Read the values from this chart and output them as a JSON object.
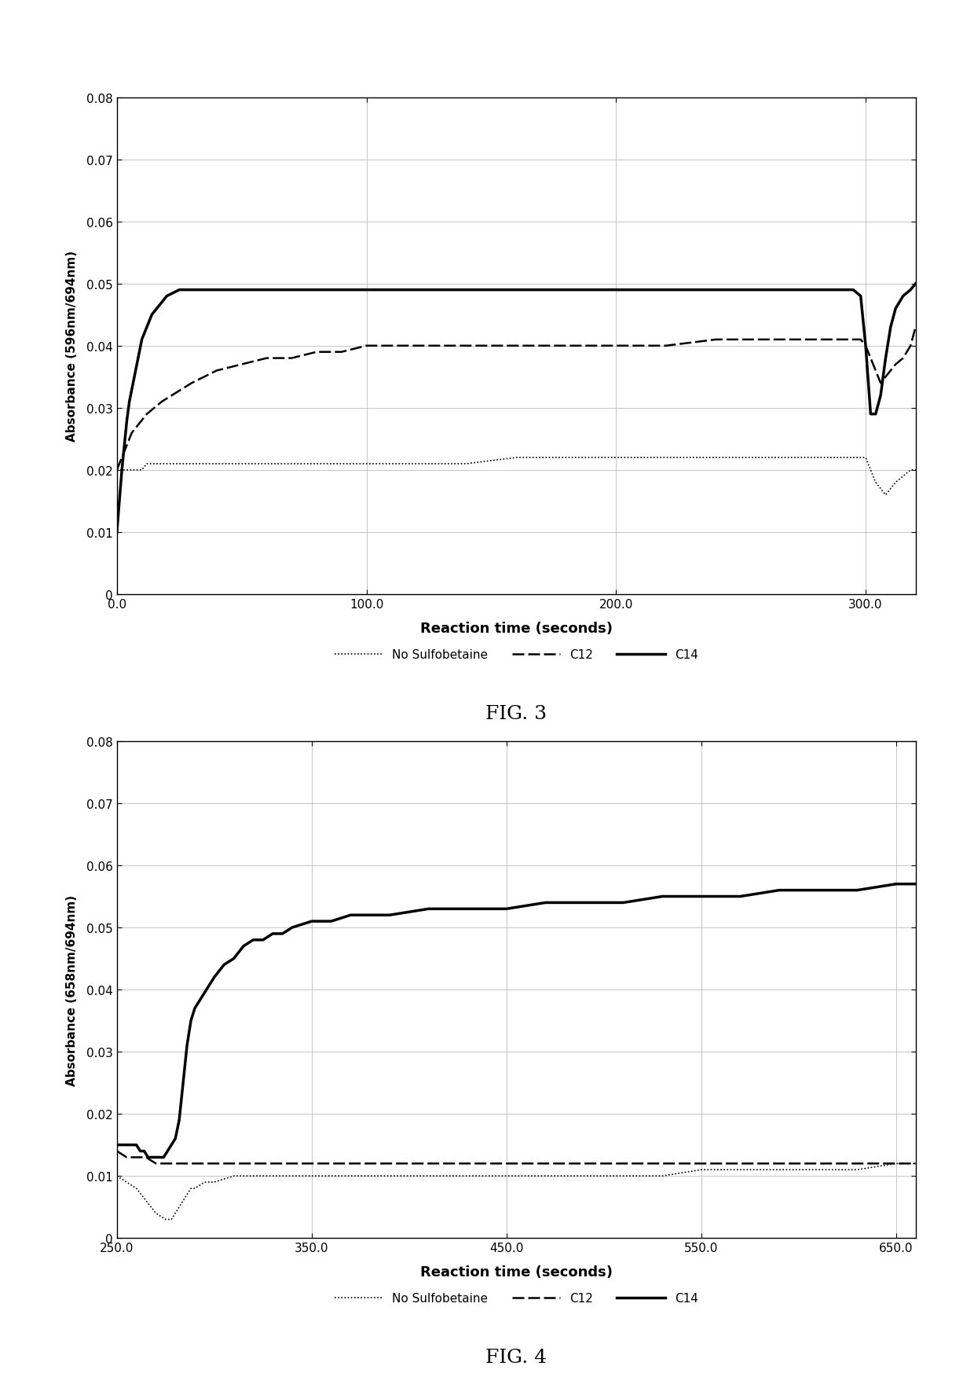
{
  "fig3": {
    "title": "FIG. 3",
    "ylabel": "Absorbance (596nm/694nm)",
    "xlabel": "Reaction time (seconds)",
    "xlim": [
      0.0,
      320.0
    ],
    "ylim": [
      0.0,
      0.08
    ],
    "xticks": [
      0.0,
      100.0,
      200.0,
      300.0
    ],
    "yticks": [
      0.0,
      0.01,
      0.02,
      0.03,
      0.04,
      0.05,
      0.06,
      0.07,
      0.08
    ],
    "no_sulfobetaine": {
      "x": [
        0,
        2,
        4,
        6,
        8,
        10,
        12,
        14,
        16,
        18,
        20,
        25,
        30,
        35,
        40,
        50,
        60,
        70,
        80,
        100,
        120,
        140,
        160,
        180,
        200,
        220,
        240,
        260,
        280,
        290,
        295,
        298,
        300,
        302,
        304,
        306,
        308,
        310,
        312,
        315,
        318,
        320
      ],
      "y": [
        0.02,
        0.02,
        0.02,
        0.02,
        0.02,
        0.02,
        0.021,
        0.021,
        0.021,
        0.021,
        0.021,
        0.021,
        0.021,
        0.021,
        0.021,
        0.021,
        0.021,
        0.021,
        0.021,
        0.021,
        0.021,
        0.021,
        0.022,
        0.022,
        0.022,
        0.022,
        0.022,
        0.022,
        0.022,
        0.022,
        0.022,
        0.022,
        0.022,
        0.02,
        0.018,
        0.017,
        0.016,
        0.017,
        0.018,
        0.019,
        0.02,
        0.02
      ],
      "label": "No Sulfobetaine"
    },
    "c12": {
      "x": [
        0,
        2,
        4,
        6,
        8,
        10,
        12,
        15,
        18,
        22,
        26,
        30,
        35,
        40,
        50,
        60,
        70,
        80,
        90,
        100,
        110,
        120,
        140,
        160,
        180,
        200,
        220,
        240,
        260,
        280,
        290,
        295,
        298,
        300,
        302,
        304,
        306,
        308,
        310,
        312,
        315,
        318,
        320
      ],
      "y": [
        0.02,
        0.022,
        0.024,
        0.026,
        0.027,
        0.028,
        0.029,
        0.03,
        0.031,
        0.032,
        0.033,
        0.034,
        0.035,
        0.036,
        0.037,
        0.038,
        0.038,
        0.039,
        0.039,
        0.04,
        0.04,
        0.04,
        0.04,
        0.04,
        0.04,
        0.04,
        0.04,
        0.041,
        0.041,
        0.041,
        0.041,
        0.041,
        0.041,
        0.04,
        0.038,
        0.036,
        0.034,
        0.035,
        0.036,
        0.037,
        0.038,
        0.04,
        0.043
      ],
      "label": "C12"
    },
    "c14": {
      "x": [
        0,
        1,
        2,
        3,
        4,
        5,
        6,
        7,
        8,
        9,
        10,
        12,
        14,
        16,
        18,
        20,
        25,
        30,
        35,
        40,
        50,
        60,
        70,
        80,
        100,
        120,
        140,
        160,
        180,
        200,
        220,
        240,
        260,
        280,
        290,
        295,
        298,
        300,
        302,
        304,
        306,
        308,
        310,
        312,
        315,
        318,
        320
      ],
      "y": [
        0.01,
        0.015,
        0.02,
        0.024,
        0.028,
        0.031,
        0.033,
        0.035,
        0.037,
        0.039,
        0.041,
        0.043,
        0.045,
        0.046,
        0.047,
        0.048,
        0.049,
        0.049,
        0.049,
        0.049,
        0.049,
        0.049,
        0.049,
        0.049,
        0.049,
        0.049,
        0.049,
        0.049,
        0.049,
        0.049,
        0.049,
        0.049,
        0.049,
        0.049,
        0.049,
        0.049,
        0.048,
        0.04,
        0.029,
        0.029,
        0.032,
        0.038,
        0.043,
        0.046,
        0.048,
        0.049,
        0.05
      ],
      "label": "C14"
    }
  },
  "fig4": {
    "title": "FIG. 4",
    "ylabel": "Absorbance (658nm/694nm)",
    "xlabel": "Reaction time (seconds)",
    "xlim": [
      250.0,
      660.0
    ],
    "ylim": [
      0.0,
      0.08
    ],
    "xticks": [
      250.0,
      350.0,
      450.0,
      550.0,
      650.0
    ],
    "yticks": [
      0.0,
      0.01,
      0.02,
      0.03,
      0.04,
      0.05,
      0.06,
      0.07,
      0.08
    ],
    "no_sulfobetaine": {
      "x": [
        250,
        255,
        260,
        265,
        270,
        275,
        278,
        280,
        282,
        284,
        286,
        288,
        290,
        295,
        300,
        310,
        320,
        330,
        340,
        350,
        370,
        390,
        410,
        430,
        450,
        470,
        490,
        510,
        530,
        550,
        570,
        590,
        610,
        630,
        650,
        660
      ],
      "y": [
        0.01,
        0.009,
        0.008,
        0.006,
        0.004,
        0.003,
        0.003,
        0.004,
        0.005,
        0.006,
        0.007,
        0.008,
        0.008,
        0.009,
        0.009,
        0.01,
        0.01,
        0.01,
        0.01,
        0.01,
        0.01,
        0.01,
        0.01,
        0.01,
        0.01,
        0.01,
        0.01,
        0.01,
        0.01,
        0.011,
        0.011,
        0.011,
        0.011,
        0.011,
        0.012,
        0.012
      ],
      "label": "No Sulfobetaine"
    },
    "c12": {
      "x": [
        250,
        255,
        260,
        265,
        270,
        275,
        278,
        280,
        282,
        284,
        286,
        288,
        290,
        295,
        300,
        310,
        320,
        330,
        340,
        350,
        370,
        390,
        410,
        430,
        450,
        470,
        490,
        510,
        530,
        550,
        570,
        590,
        610,
        630,
        650,
        660
      ],
      "y": [
        0.014,
        0.013,
        0.013,
        0.013,
        0.012,
        0.012,
        0.012,
        0.012,
        0.012,
        0.012,
        0.012,
        0.012,
        0.012,
        0.012,
        0.012,
        0.012,
        0.012,
        0.012,
        0.012,
        0.012,
        0.012,
        0.012,
        0.012,
        0.012,
        0.012,
        0.012,
        0.012,
        0.012,
        0.012,
        0.012,
        0.012,
        0.012,
        0.012,
        0.012,
        0.012,
        0.012
      ],
      "label": "C12"
    },
    "c14": {
      "x": [
        250,
        252,
        255,
        258,
        260,
        262,
        264,
        266,
        268,
        270,
        272,
        274,
        276,
        278,
        280,
        282,
        284,
        286,
        288,
        290,
        292,
        294,
        296,
        298,
        300,
        305,
        310,
        315,
        320,
        325,
        330,
        335,
        340,
        350,
        360,
        370,
        380,
        390,
        410,
        430,
        450,
        470,
        490,
        510,
        530,
        550,
        570,
        590,
        610,
        630,
        650,
        660
      ],
      "y": [
        0.015,
        0.015,
        0.015,
        0.015,
        0.015,
        0.014,
        0.014,
        0.013,
        0.013,
        0.013,
        0.013,
        0.013,
        0.014,
        0.015,
        0.016,
        0.019,
        0.025,
        0.031,
        0.035,
        0.037,
        0.038,
        0.039,
        0.04,
        0.041,
        0.042,
        0.044,
        0.045,
        0.047,
        0.048,
        0.048,
        0.049,
        0.049,
        0.05,
        0.051,
        0.051,
        0.052,
        0.052,
        0.052,
        0.053,
        0.053,
        0.053,
        0.054,
        0.054,
        0.054,
        0.055,
        0.055,
        0.055,
        0.056,
        0.056,
        0.056,
        0.057,
        0.057
      ],
      "label": "C14"
    }
  },
  "background_color": "#ffffff",
  "grid_color": "#bbbbbb",
  "color": "#000000"
}
